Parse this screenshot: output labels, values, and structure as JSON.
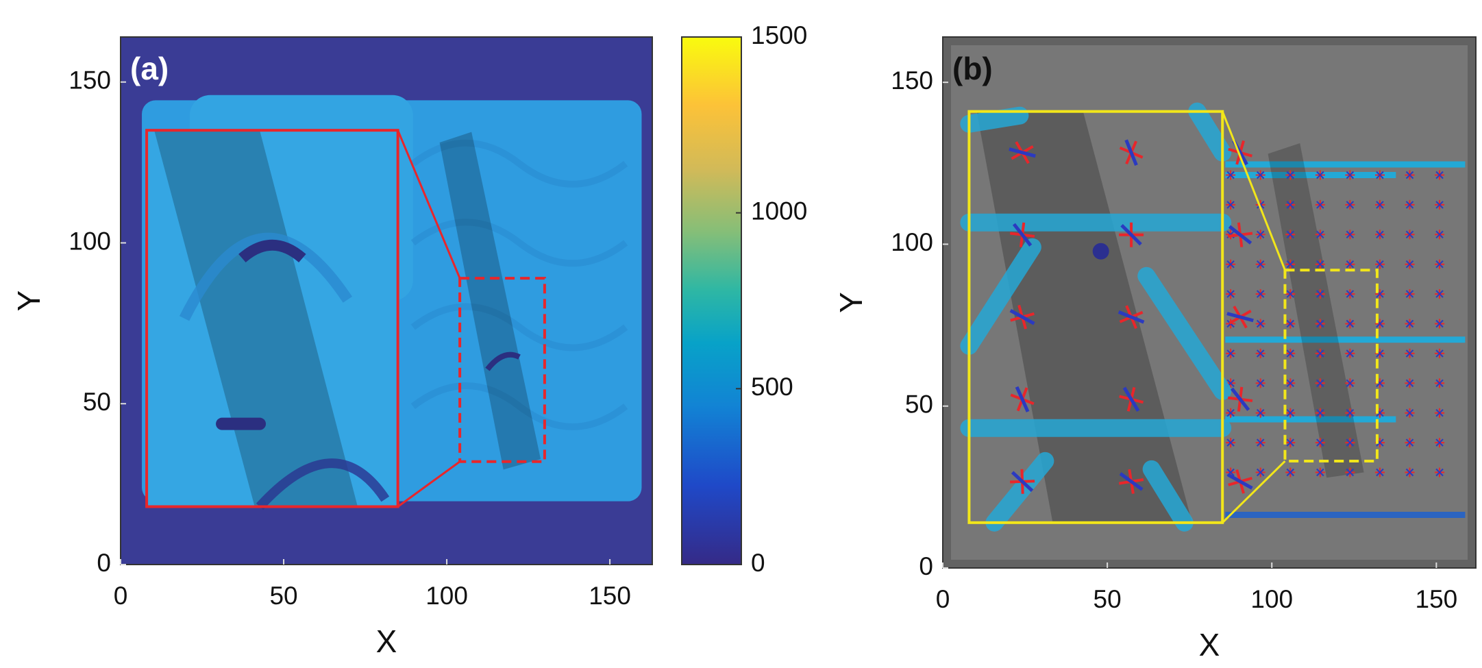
{
  "chart_data": [
    {
      "type": "heatmap",
      "panel_label": "(a)",
      "x_label": "X",
      "y_label": "Y",
      "xlim": [
        0,
        163
      ],
      "ylim": [
        0,
        164
      ],
      "xticks": [
        0,
        50,
        100,
        150
      ],
      "yticks": [
        0,
        50,
        100,
        150
      ],
      "inset_box": {
        "x": [
          8,
          85
        ],
        "y": [
          18,
          135
        ],
        "color": "#e8262b"
      },
      "zoom_box": {
        "x": [
          104,
          130
        ],
        "y": [
          32,
          89
        ],
        "color": "#e8262b"
      },
      "colorbar": {
        "lim": [
          0,
          1500
        ],
        "ticks": [
          0,
          500,
          1000,
          1500
        ]
      }
    },
    {
      "type": "vector-field",
      "panel_label": "(b)",
      "x_label": "X",
      "y_label": "Y",
      "xlim": [
        0,
        162
      ],
      "ylim": [
        0,
        164
      ],
      "xticks": [
        0,
        50,
        100,
        150
      ],
      "yticks": [
        0,
        50,
        100,
        150
      ],
      "inset_box": {
        "x": [
          8,
          85
        ],
        "y": [
          14,
          141
        ],
        "color": "#f2e61a"
      },
      "zoom_box": {
        "x": [
          104,
          132
        ],
        "y": [
          33,
          92
        ],
        "color": "#f2e61a"
      }
    }
  ]
}
